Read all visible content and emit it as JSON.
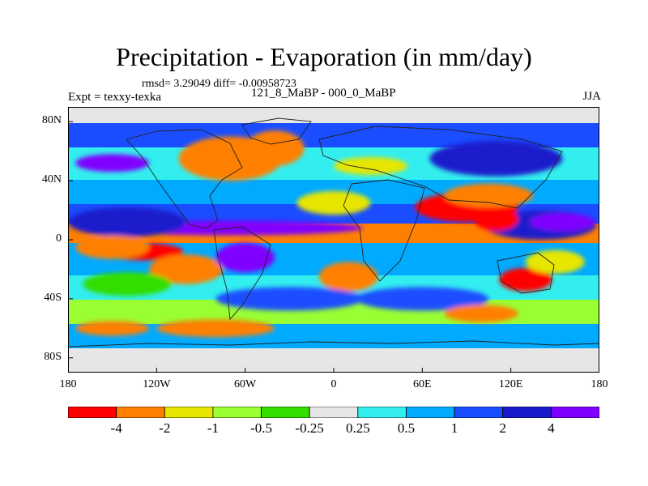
{
  "figure": {
    "title": "Precipitation - Evaporation (in mm/day)",
    "stats": "rmsd= 3.29049 diff= -0.00958723",
    "experiment": "Expt = texxy-texka",
    "subtitle": "121_8_MaBP - 000_0_MaBP",
    "season": "JJA"
  },
  "axes": {
    "y_labels": [
      "80N",
      "40N",
      "0",
      "40S",
      "80S"
    ],
    "y_values": [
      80,
      40,
      0,
      -40,
      -80
    ],
    "x_labels": [
      "180",
      "120W",
      "60W",
      "0",
      "60E",
      "120E",
      "180"
    ],
    "x_values": [
      -180,
      -120,
      -60,
      0,
      60,
      120,
      180
    ],
    "lon_range": [
      -180,
      180
    ],
    "lat_range": [
      -90,
      90
    ]
  },
  "colorbar": {
    "labels": [
      "-4",
      "-2",
      "-1",
      "-0.5",
      "-0.25",
      "0.25",
      "0.5",
      "1",
      "2",
      "4"
    ],
    "colors": [
      "#ff0000",
      "#ff8000",
      "#e6e600",
      "#99ff33",
      "#33dd00",
      "#e6e6e6",
      "#33eeee",
      "#00aaff",
      "#1a4dff",
      "#1a1acc",
      "#8000ff"
    ]
  },
  "map_regions": [
    {
      "color": "#8000ff",
      "lon": -70,
      "lat": 8,
      "rlon": 90,
      "rlat": 5
    },
    {
      "color": "#1a1acc",
      "lon": -140,
      "lat": 12,
      "rlon": 40,
      "rlat": 10
    },
    {
      "color": "#1a1acc",
      "lon": 140,
      "lat": 10,
      "rlon": 38,
      "rlat": 10
    },
    {
      "color": "#8000ff",
      "lon": 155,
      "lat": 12,
      "rlon": 22,
      "rlat": 6
    },
    {
      "color": "#ff0000",
      "lon": -130,
      "lat": -8,
      "rlon": 28,
      "rlat": 6
    },
    {
      "color": "#ff8000",
      "lon": -150,
      "lat": -5,
      "rlon": 25,
      "rlat": 8
    },
    {
      "color": "#ff8000",
      "lon": -70,
      "lat": 55,
      "rlon": 35,
      "rlat": 15
    },
    {
      "color": "#ff8000",
      "lon": -40,
      "lat": 62,
      "rlon": 20,
      "rlat": 12
    },
    {
      "color": "#ff0000",
      "lon": 90,
      "lat": 22,
      "rlon": 35,
      "rlat": 10
    },
    {
      "color": "#ff0000",
      "lon": 110,
      "lat": 14,
      "rlon": 15,
      "rlat": 8
    },
    {
      "color": "#ff8000",
      "lon": 105,
      "lat": 30,
      "rlon": 30,
      "rlat": 8
    },
    {
      "color": "#ff0000",
      "lon": 130,
      "lat": -27,
      "rlon": 18,
      "rlat": 8
    },
    {
      "color": "#ff8000",
      "lon": -100,
      "lat": -20,
      "rlon": 25,
      "rlat": 10
    },
    {
      "color": "#ff8000",
      "lon": 10,
      "lat": -25,
      "rlon": 20,
      "rlat": 10
    },
    {
      "color": "#8000ff",
      "lon": -60,
      "lat": -12,
      "rlon": 20,
      "rlat": 10
    },
    {
      "color": "#8000ff",
      "lon": -150,
      "lat": 52,
      "rlon": 25,
      "rlat": 6
    },
    {
      "color": "#1a1acc",
      "lon": 110,
      "lat": 55,
      "rlon": 45,
      "rlat": 12
    },
    {
      "color": "#1a4dff",
      "lon": -30,
      "lat": -40,
      "rlon": 50,
      "rlat": 8
    },
    {
      "color": "#1a4dff",
      "lon": 60,
      "lat": -40,
      "rlon": 45,
      "rlat": 8
    },
    {
      "color": "#ff8000",
      "lon": -80,
      "lat": -60,
      "rlon": 40,
      "rlat": 6
    },
    {
      "color": "#ff8000",
      "lon": -150,
      "lat": -60,
      "rlon": 25,
      "rlat": 5
    },
    {
      "color": "#ff8000",
      "lon": 100,
      "lat": -50,
      "rlon": 25,
      "rlat": 6
    },
    {
      "color": "#e6e600",
      "lon": 25,
      "lat": 50,
      "rlon": 25,
      "rlat": 6
    },
    {
      "color": "#e6e600",
      "lon": 0,
      "lat": 25,
      "rlon": 25,
      "rlat": 8
    },
    {
      "color": "#e6e600",
      "lon": 150,
      "lat": -15,
      "rlon": 20,
      "rlat": 8
    },
    {
      "color": "#33dd00",
      "lon": -140,
      "lat": -30,
      "rlon": 30,
      "rlat": 8
    }
  ]
}
